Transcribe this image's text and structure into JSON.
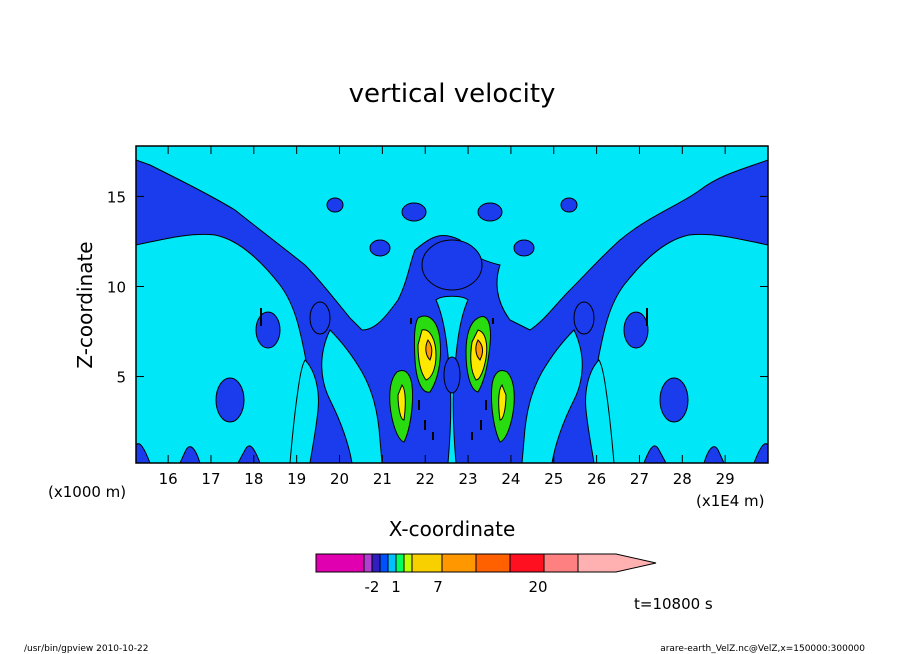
{
  "chart_data": {
    "type": "heatmap",
    "title": "vertical velocity",
    "xlabel": "X-coordinate",
    "ylabel": "Z-coordinate",
    "x_unit_left": "(x1000 m)",
    "x_unit_right": "(x1E4 m)",
    "xlim": [
      15.25,
      30.0
    ],
    "ylim": [
      0.2,
      17.8
    ],
    "x_ticks": [
      "16",
      "17",
      "18",
      "19",
      "20",
      "21",
      "22",
      "23",
      "24",
      "25",
      "26",
      "27",
      "28",
      "29"
    ],
    "y_ticks": [
      "5",
      "10",
      "15"
    ],
    "time_label": "t=10800 s",
    "colorbar": {
      "colors": [
        "#e000b0",
        "#b040d0",
        "#301ec0",
        "#0050ff",
        "#00c0ff",
        "#00ff60",
        "#c0ff00",
        "#f8d000",
        "#ff9800",
        "#ff6000",
        "#ff1020",
        "#ff8080",
        "#ffb0b0"
      ],
      "labels": [
        "-2",
        "1",
        "7",
        "20"
      ],
      "extend": "max"
    },
    "field_colors": {
      "background": "#1a3cec",
      "light": "#00e8f8",
      "green": "#28dc10",
      "yellow": "#ffe800",
      "orange": "#ff9800"
    },
    "updrafts": [
      {
        "x": 21.2,
        "z": 3.6,
        "level": 1
      },
      {
        "x": 21.9,
        "z": 6.5,
        "level": 3
      },
      {
        "x": 23.15,
        "z": 6.5,
        "level": 3
      },
      {
        "x": 23.8,
        "z": 3.6,
        "level": 1
      }
    ]
  },
  "footer": {
    "left": "/usr/bin/gpview   2010-10-22",
    "right": "arare-earth_VelZ.nc@VelZ,x=150000:300000"
  }
}
